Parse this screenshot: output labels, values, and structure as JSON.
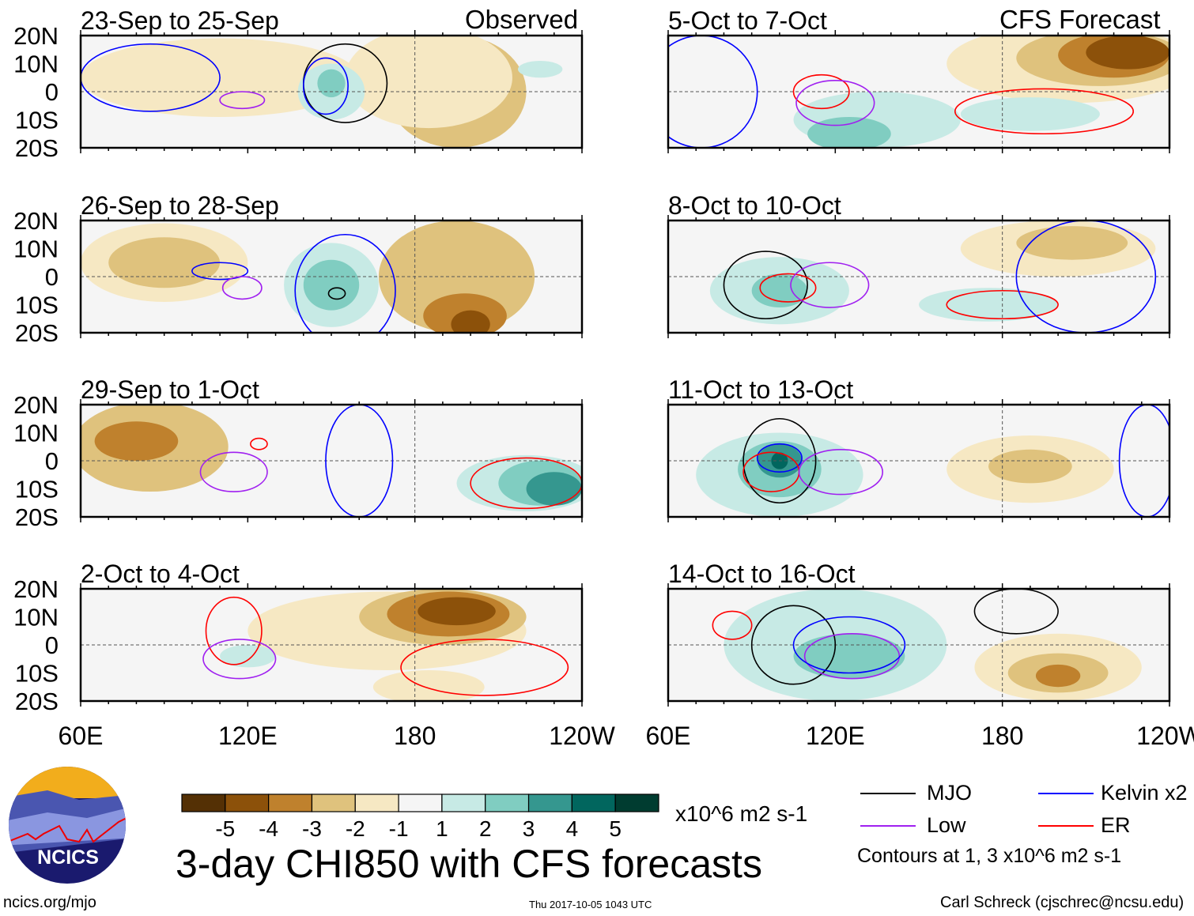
{
  "chart_data": {
    "type": "heatmap",
    "title": "3-day CHI850 with CFS forecasts",
    "units": "x10^6 m2 s-1",
    "x_ticks": [
      "60E",
      "120E",
      "180",
      "120W"
    ],
    "x_range_lon": [
      60,
      240
    ],
    "y_ticks": [
      "20N",
      "10N",
      "0",
      "10S",
      "20S"
    ],
    "y_range_lat": [
      -20,
      20
    ],
    "column_labels": [
      "Observed",
      "CFS Forecast"
    ],
    "colorbar": {
      "labels": [
        "-5",
        "-4",
        "-3",
        "-2",
        "-1",
        "1",
        "2",
        "3",
        "4",
        "5"
      ],
      "colors": [
        "#543005",
        "#8c510a",
        "#bf812d",
        "#dfc27d",
        "#f6e8c3",
        "#f5f5f5",
        "#c7eae5",
        "#80cdc1",
        "#35978f",
        "#01665e",
        "#003c30"
      ]
    },
    "contour_legend": [
      {
        "label": "MJO",
        "color": "#000000"
      },
      {
        "label": "Kelvin x2",
        "color": "#0000ff"
      },
      {
        "label": "Low",
        "color": "#a020f0"
      },
      {
        "label": "ER",
        "color": "#ff0000"
      }
    ],
    "contour_note": "Contours at 1, 3 x10^6 m2 s-1",
    "panels": [
      {
        "title": "23-Sep to 25-Sep",
        "col": 0,
        "row": 0,
        "shade": [
          {
            "lon": 110,
            "lat": 5,
            "rlon": 50,
            "rlat": 14,
            "v": -1
          },
          {
            "lon": 195,
            "lat": 0,
            "rlon": 25,
            "rlat": 20,
            "v": -2
          },
          {
            "lon": 185,
            "lat": 5,
            "rlon": 30,
            "rlat": 18,
            "v": -1
          },
          {
            "lon": 150,
            "lat": 0,
            "rlon": 12,
            "rlat": 10,
            "v": 1
          },
          {
            "lon": 150,
            "lat": 3,
            "rlon": 5,
            "rlat": 5,
            "v": 2
          },
          {
            "lon": 225,
            "lat": 8,
            "rlon": 8,
            "rlat": 3,
            "v": 1
          }
        ],
        "contours": [
          {
            "k": "MJO",
            "lon": 155,
            "lat": 3,
            "rlon": 15,
            "rlat": 14
          },
          {
            "k": "Kelvin x2",
            "lon": 85,
            "lat": 5,
            "rlon": 25,
            "rlat": 12
          },
          {
            "k": "Kelvin x2",
            "lon": 148,
            "lat": 2,
            "rlon": 8,
            "rlat": 10
          },
          {
            "k": "Low",
            "lon": 118,
            "lat": -3,
            "rlon": 8,
            "rlat": 3
          }
        ]
      },
      {
        "title": "26-Sep to 28-Sep",
        "col": 0,
        "row": 1,
        "shade": [
          {
            "lon": 90,
            "lat": 5,
            "rlon": 30,
            "rlat": 14,
            "v": -1
          },
          {
            "lon": 90,
            "lat": 5,
            "rlon": 20,
            "rlat": 9,
            "v": -2
          },
          {
            "lon": 195,
            "lat": 0,
            "rlon": 28,
            "rlat": 20,
            "v": -2
          },
          {
            "lon": 198,
            "lat": -14,
            "rlon": 15,
            "rlat": 8,
            "v": -3
          },
          {
            "lon": 200,
            "lat": -17,
            "rlon": 7,
            "rlat": 5,
            "v": -4
          },
          {
            "lon": 150,
            "lat": -3,
            "rlon": 17,
            "rlat": 15,
            "v": 1
          },
          {
            "lon": 150,
            "lat": -3,
            "rlon": 10,
            "rlat": 9,
            "v": 2
          }
        ],
        "contours": [
          {
            "k": "MJO",
            "lon": 152,
            "lat": -6,
            "rlon": 3,
            "rlat": 2
          },
          {
            "k": "Kelvin x2",
            "lon": 155,
            "lat": -5,
            "rlon": 18,
            "rlat": 20
          },
          {
            "k": "Kelvin x2",
            "lon": 110,
            "lat": 2,
            "rlon": 10,
            "rlat": 3
          },
          {
            "k": "Low",
            "lon": 118,
            "lat": -4,
            "rlon": 7,
            "rlat": 4
          }
        ]
      },
      {
        "title": "29-Sep to 1-Oct",
        "col": 0,
        "row": 2,
        "shade": [
          {
            "lon": 85,
            "lat": 5,
            "rlon": 28,
            "rlat": 16,
            "v": -2
          },
          {
            "lon": 80,
            "lat": 7,
            "rlon": 15,
            "rlat": 7,
            "v": -3
          },
          {
            "lon": 220,
            "lat": -8,
            "rlon": 25,
            "rlat": 10,
            "v": 1
          },
          {
            "lon": 225,
            "lat": -8,
            "rlon": 15,
            "rlat": 8,
            "v": 2
          },
          {
            "lon": 230,
            "lat": -10,
            "rlon": 10,
            "rlat": 6,
            "v": 3
          }
        ],
        "contours": [
          {
            "k": "ER",
            "lon": 220,
            "lat": -8,
            "rlon": 20,
            "rlat": 9
          },
          {
            "k": "ER",
            "lon": 124,
            "lat": 6,
            "rlon": 3,
            "rlat": 2
          },
          {
            "k": "Kelvin x2",
            "lon": 160,
            "lat": 0,
            "rlon": 12,
            "rlat": 20
          },
          {
            "k": "Low",
            "lon": 115,
            "lat": -4,
            "rlon": 12,
            "rlat": 7
          }
        ]
      },
      {
        "title": "2-Oct to 4-Oct",
        "col": 0,
        "row": 3,
        "shade": [
          {
            "lon": 170,
            "lat": 5,
            "rlon": 50,
            "rlat": 14,
            "v": -1
          },
          {
            "lon": 190,
            "lat": 10,
            "rlon": 30,
            "rlat": 10,
            "v": -2
          },
          {
            "lon": 192,
            "lat": 11,
            "rlon": 22,
            "rlat": 8,
            "v": -3
          },
          {
            "lon": 195,
            "lat": 12,
            "rlon": 14,
            "rlat": 5,
            "v": -4
          },
          {
            "lon": 185,
            "lat": -15,
            "rlon": 20,
            "rlat": 6,
            "v": -1
          },
          {
            "lon": 120,
            "lat": -4,
            "rlon": 10,
            "rlat": 4,
            "v": 1
          }
        ],
        "contours": [
          {
            "k": "ER",
            "lon": 115,
            "lat": 5,
            "rlon": 10,
            "rlat": 12
          },
          {
            "k": "ER",
            "lon": 205,
            "lat": -8,
            "rlon": 30,
            "rlat": 10
          },
          {
            "k": "Low",
            "lon": 117,
            "lat": -5,
            "rlon": 13,
            "rlat": 7
          }
        ]
      },
      {
        "title": "5-Oct to 7-Oct",
        "col": 1,
        "row": 0,
        "shade": [
          {
            "lon": 205,
            "lat": 10,
            "rlon": 45,
            "rlat": 14,
            "v": -1
          },
          {
            "lon": 215,
            "lat": 12,
            "rlon": 30,
            "rlat": 10,
            "v": -2
          },
          {
            "lon": 220,
            "lat": 13,
            "rlon": 20,
            "rlat": 8,
            "v": -3
          },
          {
            "lon": 225,
            "lat": 14,
            "rlon": 15,
            "rlat": 6,
            "v": -4
          },
          {
            "lon": 135,
            "lat": -10,
            "rlon": 30,
            "rlat": 10,
            "v": 1
          },
          {
            "lon": 125,
            "lat": -15,
            "rlon": 15,
            "rlat": 6,
            "v": 2
          },
          {
            "lon": 190,
            "lat": -8,
            "rlon": 25,
            "rlat": 6,
            "v": 1
          }
        ],
        "contours": [
          {
            "k": "ER",
            "lon": 115,
            "lat": 0,
            "rlon": 10,
            "rlat": 6
          },
          {
            "k": "ER",
            "lon": 195,
            "lat": -7,
            "rlon": 32,
            "rlat": 8
          },
          {
            "k": "Low",
            "lon": 120,
            "lat": -4,
            "rlon": 14,
            "rlat": 8
          },
          {
            "k": "Kelvin x2",
            "lon": 72,
            "lat": 0,
            "rlon": 20,
            "rlat": 20
          }
        ]
      },
      {
        "title": "8-Oct to 10-Oct",
        "col": 1,
        "row": 1,
        "shade": [
          {
            "lon": 200,
            "lat": 10,
            "rlon": 35,
            "rlat": 10,
            "v": -1
          },
          {
            "lon": 205,
            "lat": 12,
            "rlon": 20,
            "rlat": 6,
            "v": -2
          },
          {
            "lon": 100,
            "lat": -5,
            "rlon": 25,
            "rlat": 12,
            "v": 1
          },
          {
            "lon": 100,
            "lat": -5,
            "rlon": 10,
            "rlat": 6,
            "v": 2
          },
          {
            "lon": 175,
            "lat": -10,
            "rlon": 25,
            "rlat": 6,
            "v": 1
          }
        ],
        "contours": [
          {
            "k": "MJO",
            "lon": 95,
            "lat": -3,
            "rlon": 15,
            "rlat": 12
          },
          {
            "k": "ER",
            "lon": 103,
            "lat": -4,
            "rlon": 10,
            "rlat": 5
          },
          {
            "k": "ER",
            "lon": 180,
            "lat": -10,
            "rlon": 20,
            "rlat": 5
          },
          {
            "k": "Low",
            "lon": 118,
            "lat": -3,
            "rlon": 14,
            "rlat": 8
          },
          {
            "k": "Kelvin x2",
            "lon": 210,
            "lat": 0,
            "rlon": 25,
            "rlat": 20
          }
        ]
      },
      {
        "title": "11-Oct to 13-Oct",
        "col": 1,
        "row": 2,
        "shade": [
          {
            "lon": 100,
            "lat": -5,
            "rlon": 30,
            "rlat": 15,
            "v": 1
          },
          {
            "lon": 100,
            "lat": -3,
            "rlon": 15,
            "rlat": 10,
            "v": 2
          },
          {
            "lon": 100,
            "lat": 0,
            "rlon": 8,
            "rlat": 6,
            "v": 3
          },
          {
            "lon": 100,
            "lat": 0,
            "rlon": 3,
            "rlat": 3,
            "v": 4
          },
          {
            "lon": 190,
            "lat": -3,
            "rlon": 30,
            "rlat": 12,
            "v": -1
          },
          {
            "lon": 190,
            "lat": -2,
            "rlon": 15,
            "rlat": 6,
            "v": -2
          }
        ],
        "contours": [
          {
            "k": "MJO",
            "lon": 100,
            "lat": 0,
            "rlon": 13,
            "rlat": 15
          },
          {
            "k": "Kelvin x2",
            "lon": 100,
            "lat": 1,
            "rlon": 8,
            "rlat": 5
          },
          {
            "k": "ER",
            "lon": 97,
            "lat": -4,
            "rlon": 10,
            "rlat": 7
          },
          {
            "k": "Low",
            "lon": 122,
            "lat": -4,
            "rlon": 15,
            "rlat": 8
          },
          {
            "k": "Kelvin x2",
            "lon": 232,
            "lat": 0,
            "rlon": 10,
            "rlat": 20
          }
        ]
      },
      {
        "title": "14-Oct to 16-Oct",
        "col": 1,
        "row": 3,
        "shade": [
          {
            "lon": 120,
            "lat": 0,
            "rlon": 40,
            "rlat": 20,
            "v": 1
          },
          {
            "lon": 125,
            "lat": -4,
            "rlon": 20,
            "rlat": 8,
            "v": 2
          },
          {
            "lon": 200,
            "lat": -8,
            "rlon": 30,
            "rlat": 12,
            "v": -1
          },
          {
            "lon": 200,
            "lat": -10,
            "rlon": 18,
            "rlat": 7,
            "v": -2
          },
          {
            "lon": 200,
            "lat": -11,
            "rlon": 8,
            "rlat": 4,
            "v": -3
          }
        ],
        "contours": [
          {
            "k": "MJO",
            "lon": 105,
            "lat": 0,
            "rlon": 15,
            "rlat": 14
          },
          {
            "k": "MJO",
            "lon": 185,
            "lat": 12,
            "rlon": 15,
            "rlat": 8
          },
          {
            "k": "ER",
            "lon": 83,
            "lat": 7,
            "rlon": 7,
            "rlat": 5
          },
          {
            "k": "Low",
            "lon": 126,
            "lat": -4,
            "rlon": 17,
            "rlat": 8
          },
          {
            "k": "Kelvin x2",
            "lon": 125,
            "lat": 0,
            "rlon": 20,
            "rlat": 10
          }
        ]
      }
    ]
  },
  "footer": {
    "logo_text": "NCICS",
    "site": "ncics.org/mjo",
    "timestamp": "Thu 2017-10-05 1043 UTC",
    "author": "Carl Schreck (cjschrec@ncsu.edu)"
  }
}
